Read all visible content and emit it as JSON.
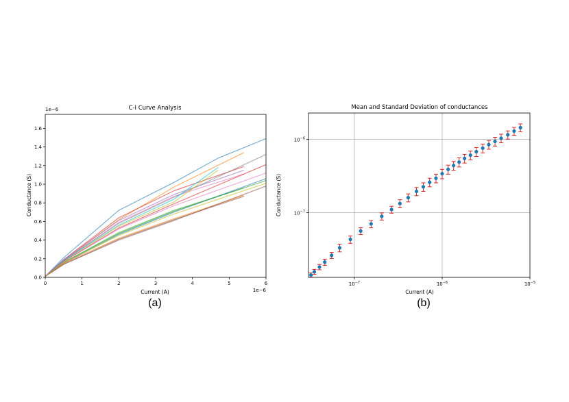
{
  "panel_labels": [
    "(a)",
    "(b)"
  ],
  "chart_data": [
    {
      "type": "line",
      "title": "C-I Curve Analysis",
      "xlabel": "Current (A)",
      "ylabel": "Conductance (S)",
      "x_offset_label": "1e−6",
      "y_offset_label": "1e−6",
      "xlim": [
        0,
        6
      ],
      "ylim": [
        0,
        1.75
      ],
      "x_ticks": [
        0,
        1,
        2,
        3,
        4,
        5,
        6
      ],
      "y_ticks": [
        0.0,
        0.2,
        0.4,
        0.6,
        0.8,
        1.0,
        1.2,
        1.4,
        1.6
      ],
      "x_tick_labels": [
        "0",
        "1",
        "2",
        "3",
        "4",
        "5",
        "6"
      ],
      "y_tick_labels": [
        "0.0",
        "0.2",
        "0.4",
        "0.6",
        "0.8",
        "1.0",
        "1.2",
        "1.4",
        "1.6"
      ],
      "grid": false,
      "series": [
        {
          "color": "#1f77b4",
          "points": [
            [
              0,
              0.01
            ],
            [
              0.5,
              0.21
            ],
            [
              2,
              0.72
            ],
            [
              3.5,
              1.02
            ],
            [
              4.7,
              1.28
            ],
            [
              6,
              1.49
            ]
          ]
        },
        {
          "color": "#ff7f0e",
          "points": [
            [
              0,
              0.01
            ],
            [
              0.5,
              0.18
            ],
            [
              2,
              0.62
            ],
            [
              3.5,
              0.97
            ],
            [
              5.4,
              1.34
            ]
          ]
        },
        {
          "color": "#2ca02c",
          "points": [
            [
              0,
              0.01
            ],
            [
              0.5,
              0.16
            ],
            [
              2,
              0.48
            ],
            [
              3.5,
              0.72
            ],
            [
              5.4,
              0.96
            ]
          ]
        },
        {
          "color": "#d62728",
          "points": [
            [
              0,
              0.01
            ],
            [
              0.5,
              0.19
            ],
            [
              2,
              0.64
            ],
            [
              3.5,
              0.93
            ],
            [
              5.4,
              1.19
            ]
          ]
        },
        {
          "color": "#9467bd",
          "points": [
            [
              0,
              0.01
            ],
            [
              0.5,
              0.19
            ],
            [
              2,
              0.61
            ],
            [
              3.5,
              0.89
            ],
            [
              5.4,
              1.15
            ]
          ]
        },
        {
          "color": "#8c564b",
          "points": [
            [
              0,
              0.01
            ],
            [
              0.5,
              0.14
            ],
            [
              2,
              0.41
            ],
            [
              3.5,
              0.62
            ],
            [
              5.4,
              0.87
            ]
          ]
        },
        {
          "color": "#e377c2",
          "points": [
            [
              0,
              0.01
            ],
            [
              0.5,
              0.18
            ],
            [
              2,
              0.59
            ],
            [
              3.5,
              0.87
            ],
            [
              5.4,
              1.11
            ]
          ]
        },
        {
          "color": "#7f7f7f",
          "points": [
            [
              0,
              0.01
            ],
            [
              0.5,
              0.18
            ],
            [
              2,
              0.58
            ],
            [
              3.5,
              0.86
            ],
            [
              6,
              1.32
            ]
          ]
        },
        {
          "color": "#bcbd22",
          "points": [
            [
              0,
              0.01
            ],
            [
              0.5,
              0.17
            ],
            [
              2,
              0.55
            ],
            [
              3.5,
              0.81
            ],
            [
              4.7,
              1.15
            ]
          ]
        },
        {
          "color": "#17becf",
          "points": [
            [
              0,
              0.01
            ],
            [
              0.5,
              0.18
            ],
            [
              2,
              0.56
            ],
            [
              3.5,
              0.84
            ],
            [
              4.7,
              1.18
            ]
          ]
        },
        {
          "color": "#1f77b4",
          "points": [
            [
              0,
              0.01
            ],
            [
              0.5,
              0.15
            ],
            [
              2,
              0.46
            ],
            [
              3.5,
              0.7
            ],
            [
              6,
              1.06
            ]
          ]
        },
        {
          "color": "#ff7f0e",
          "points": [
            [
              0,
              0.01
            ],
            [
              0.5,
              0.15
            ],
            [
              2,
              0.42
            ],
            [
              3.5,
              0.63
            ],
            [
              5.4,
              0.88
            ]
          ]
        },
        {
          "color": "#2ca02c",
          "points": [
            [
              0,
              0.01
            ],
            [
              0.5,
              0.16
            ],
            [
              2,
              0.47
            ],
            [
              3.5,
              0.71
            ],
            [
              6,
              1.04
            ]
          ]
        },
        {
          "color": "#d62728",
          "points": [
            [
              0,
              0.01
            ],
            [
              0.5,
              0.17
            ],
            [
              2,
              0.53
            ],
            [
              3.5,
              0.79
            ],
            [
              6,
              1.21
            ]
          ]
        },
        {
          "color": "#8c564b",
          "points": [
            [
              0,
              0.01
            ],
            [
              0.5,
              0.14
            ],
            [
              2,
              0.4
            ],
            [
              3.5,
              0.61
            ],
            [
              6,
              0.98
            ]
          ]
        },
        {
          "color": "#e377c2",
          "points": [
            [
              0,
              0.01
            ],
            [
              0.5,
              0.17
            ],
            [
              2,
              0.52
            ],
            [
              3.5,
              0.77
            ],
            [
              6,
              1.12
            ]
          ]
        },
        {
          "color": "#bcbd22",
          "points": [
            [
              0,
              0.01
            ],
            [
              0.5,
              0.16
            ],
            [
              2,
              0.45
            ],
            [
              3.5,
              0.68
            ],
            [
              6,
              1.01
            ]
          ]
        }
      ]
    },
    {
      "type": "scatter",
      "title": "Mean and Standard Deviation of conductances",
      "xlabel": "Current (A)",
      "ylabel": "Conductance (S)",
      "xscale": "log",
      "yscale": "log",
      "xlim": [
        3e-08,
        1e-05
      ],
      "ylim": [
        1.3e-08,
        2.3e-06
      ],
      "x_ticks": [
        1e-07,
        1e-06,
        1e-05
      ],
      "x_tick_labels": [
        {
          "base": "10",
          "exp": "−7"
        },
        {
          "base": "10",
          "exp": "−6"
        },
        {
          "base": "10",
          "exp": "−5"
        }
      ],
      "y_ticks": [
        1e-07,
        1e-06
      ],
      "y_tick_labels": [
        {
          "base": "10",
          "exp": "−7"
        },
        {
          "base": "10",
          "exp": "−6"
        }
      ],
      "grid": true,
      "marker_color": "#1f77b4",
      "errorbar_color": "#d62728",
      "points": [
        {
          "x": 3.2e-08,
          "y": 1.4e-08,
          "sd": 1e-09
        },
        {
          "x": 3.5e-08,
          "y": 1.55e-08,
          "sd": 1.2e-09
        },
        {
          "x": 4e-08,
          "y": 1.8e-08,
          "sd": 1.5e-09
        },
        {
          "x": 4.6e-08,
          "y": 2.1e-08,
          "sd": 2e-09
        },
        {
          "x": 5.5e-08,
          "y": 2.6e-08,
          "sd": 2.5e-09
        },
        {
          "x": 6.8e-08,
          "y": 3.3e-08,
          "sd": 4e-09
        },
        {
          "x": 9e-08,
          "y": 4.3e-08,
          "sd": 5e-09
        },
        {
          "x": 1.18e-07,
          "y": 5.6e-08,
          "sd": 6e-09
        },
        {
          "x": 1.55e-07,
          "y": 7e-08,
          "sd": 8e-09
        },
        {
          "x": 2.05e-07,
          "y": 8.9e-08,
          "sd": 1e-08
        },
        {
          "x": 2.65e-07,
          "y": 1.1e-07,
          "sd": 1.2e-08
        },
        {
          "x": 3.3e-07,
          "y": 1.33e-07,
          "sd": 1.7e-08
        },
        {
          "x": 4.1e-07,
          "y": 1.6e-07,
          "sd": 2e-08
        },
        {
          "x": 5.1e-07,
          "y": 1.95e-07,
          "sd": 2.5e-08
        },
        {
          "x": 6.1e-07,
          "y": 2.25e-07,
          "sd": 3e-08
        },
        {
          "x": 7.2e-07,
          "y": 2.6e-07,
          "sd": 3.5e-08
        },
        {
          "x": 8.5e-07,
          "y": 2.95e-07,
          "sd": 4e-08
        },
        {
          "x": 1e-06,
          "y": 3.4e-07,
          "sd": 5e-08
        },
        {
          "x": 1.17e-06,
          "y": 3.9e-07,
          "sd": 5.5e-08
        },
        {
          "x": 1.35e-06,
          "y": 4.4e-07,
          "sd": 6e-08
        },
        {
          "x": 1.56e-06,
          "y": 4.9e-07,
          "sd": 7e-08
        },
        {
          "x": 1.8e-06,
          "y": 5.5e-07,
          "sd": 7.5e-08
        },
        {
          "x": 2.1e-06,
          "y": 6.1e-07,
          "sd": 8.5e-08
        },
        {
          "x": 2.45e-06,
          "y": 6.8e-07,
          "sd": 9.5e-08
        },
        {
          "x": 2.9e-06,
          "y": 7.6e-07,
          "sd": 1.05e-07
        },
        {
          "x": 3.4e-06,
          "y": 8.5e-07,
          "sd": 1.15e-07
        },
        {
          "x": 4e-06,
          "y": 9.4e-07,
          "sd": 1.3e-07
        },
        {
          "x": 4.7e-06,
          "y": 1.04e-06,
          "sd": 1.4e-07
        },
        {
          "x": 5.6e-06,
          "y": 1.16e-06,
          "sd": 1.5e-07
        },
        {
          "x": 6.6e-06,
          "y": 1.3e-06,
          "sd": 1.6e-07
        },
        {
          "x": 7.8e-06,
          "y": 1.45e-06,
          "sd": 1.8e-07
        }
      ]
    }
  ]
}
